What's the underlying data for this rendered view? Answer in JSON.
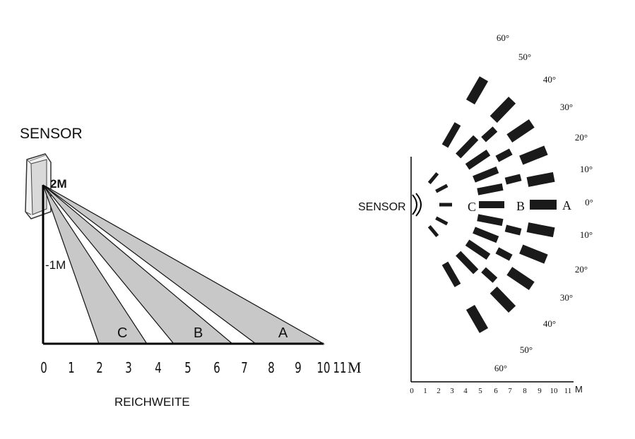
{
  "side_view": {
    "sensor_label": "SENSOR",
    "height_labels": [
      "2M",
      "1M"
    ],
    "zone_labels": [
      "C",
      "B",
      "A"
    ],
    "axis_ticks": [
      "0",
      "1",
      "2",
      "3",
      "4",
      "5",
      "6",
      "7",
      "8",
      "9",
      "10",
      "11"
    ],
    "axis_unit": "M",
    "caption": "REICHWEITE",
    "zone_fill": "#c8c8c8"
  },
  "top_view": {
    "sensor_label": "SENSOR",
    "zone_labels": [
      "C",
      "B",
      "A"
    ],
    "angle_labels_upper": [
      "60°",
      "50°",
      "40°",
      "30°",
      "20°",
      "10°",
      "0°"
    ],
    "angle_labels_lower": [
      "10°",
      "20°",
      "30°",
      "40°",
      "50°",
      "60°"
    ],
    "axis_ticks": [
      "0",
      "1",
      "2",
      "3",
      "4",
      "5",
      "6",
      "7",
      "8",
      "9",
      "10",
      "11"
    ],
    "axis_unit": "M",
    "segment_color": "#1a1a1a"
  }
}
